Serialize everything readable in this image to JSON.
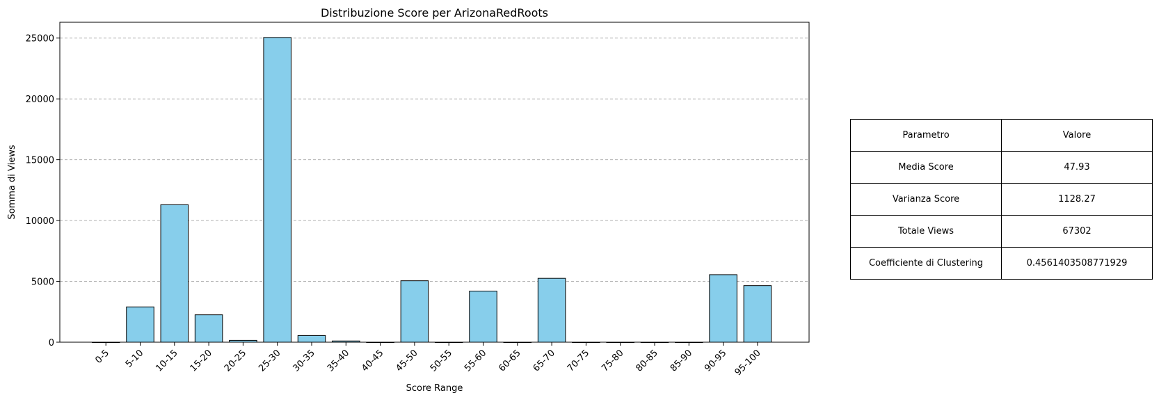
{
  "chart_data": {
    "type": "bar",
    "title": "Distribuzione Score per ArizonaRedRoots",
    "xlabel": "Score Range",
    "ylabel": "Somma di Views",
    "categories": [
      "0-5",
      "5-10",
      "10-15",
      "15-20",
      "20-25",
      "25-30",
      "30-35",
      "35-40",
      "40-45",
      "45-50",
      "50-55",
      "55-60",
      "60-65",
      "65-70",
      "70-75",
      "75-80",
      "80-85",
      "85-90",
      "90-95",
      "95-100"
    ],
    "values": [
      0,
      2900,
      11300,
      2250,
      150,
      25050,
      550,
      100,
      0,
      5050,
      0,
      4200,
      0,
      5250,
      0,
      0,
      0,
      0,
      5550,
      4650
    ],
    "ylim": [
      0,
      26300
    ],
    "yticks": [
      0,
      5000,
      10000,
      15000,
      20000,
      25000
    ],
    "grid": "y-dashed",
    "colors": {
      "bar": "#87ceeb",
      "edge": "#000000",
      "grid": "#b0b0b0"
    }
  },
  "table": {
    "header": [
      "Parametro",
      "Valore"
    ],
    "rows": [
      [
        "Media Score",
        "47.93"
      ],
      [
        "Varianza Score",
        "1128.27"
      ],
      [
        "Totale Views",
        "67302"
      ],
      [
        "Coefficiente di Clustering",
        "0.4561403508771929"
      ]
    ]
  }
}
